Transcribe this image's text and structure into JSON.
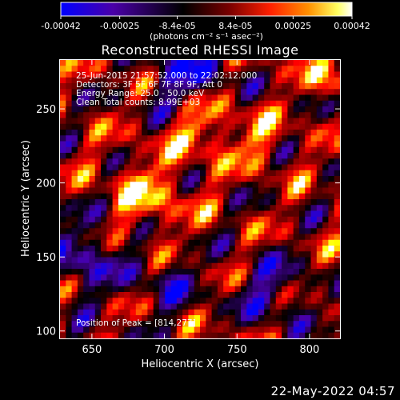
{
  "chart_data": {
    "type": "heatmap",
    "title": "Reconstructed RHESSI Image",
    "xlabel": "Heliocentric X (arcsec)",
    "ylabel": "Heliocentric Y (arcsec)",
    "xlim": [
      628,
      821
    ],
    "ylim": [
      95,
      283
    ],
    "x_ticks": [
      650,
      700,
      750,
      800
    ],
    "y_ticks": [
      100,
      150,
      200,
      250
    ],
    "grid": false,
    "colorbar": {
      "min": -0.00042,
      "max": 0.00042,
      "tick_values": [
        -0.00042,
        -0.00025,
        -8.4e-05,
        8.4e-05,
        0.00025,
        0.00042
      ],
      "tick_labels": [
        "-0.00042",
        "-0.00025",
        "-8.4e-05",
        "8.4e-05",
        "0.00025",
        "0.00042"
      ],
      "unit_label": "(photons cm⁻² s⁻¹ asec⁻²)"
    },
    "annotations": {
      "time_range": "25-Jun-2015 21:57:52.000 to 22:02:12.000",
      "detectors": "Detectors: 3F 5F 6F 7F 8F 9F, Att 0",
      "energy": "Energy Range: 25.0 - 50.0 keV",
      "clean": "Clean     Total counts: 8.99E+03",
      "peak": "Position of Peak = [814,277]"
    },
    "peak": [
      814,
      277
    ],
    "colormap": [
      "#0000ff",
      "#4a00a8",
      "#000000",
      "#7a0000",
      "#ff0000",
      "#ff8000",
      "#ffff00",
      "#ffffff"
    ]
  },
  "footer": {
    "date": "22-May-2022 04:57"
  }
}
